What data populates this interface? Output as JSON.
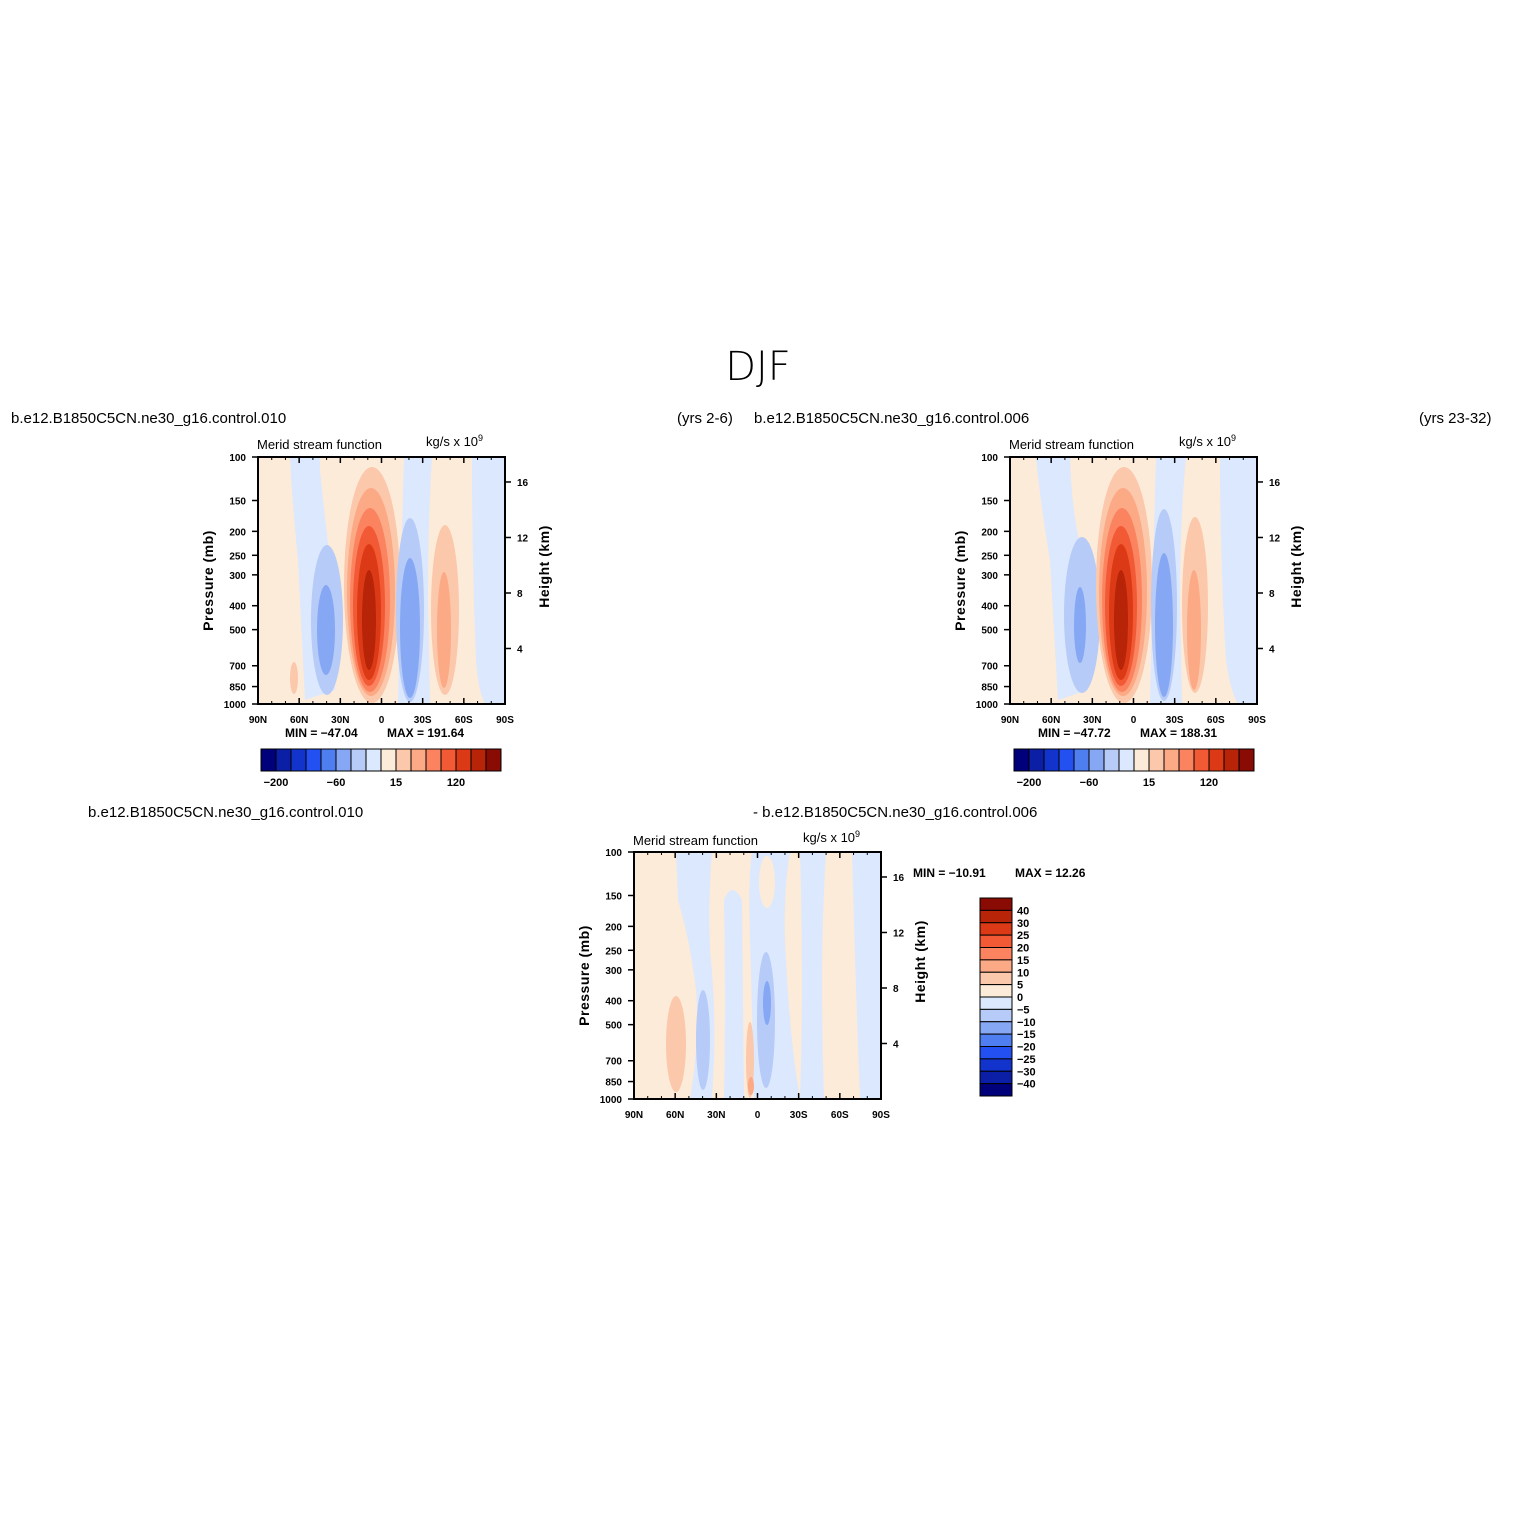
{
  "figure": {
    "title": "DJF",
    "panel_top_left": {
      "case_left": "b.e12.B1850C5CN.ne30_g16.control.010",
      "case_right": "(yrs 2-6)",
      "variable": "Merid stream function",
      "units": "kg/s x 10",
      "units_exp": "9",
      "min_label": "MIN = -47.04",
      "max_label": "MAX = 191.64"
    },
    "panel_top_right": {
      "case_left": "b.e12.B1850C5CN.ne30_g16.control.006",
      "case_right": "(yrs 23-32)",
      "variable": "Merid stream function",
      "units": "kg/s x 10",
      "units_exp": "9",
      "min_label": "MIN = -47.72",
      "max_label": "MAX = 188.31"
    },
    "panel_diff": {
      "case_left": "b.e12.B1850C5CN.ne30_g16.control.010",
      "case_right": "- b.e12.B1850C5CN.ne30_g16.control.006",
      "variable": "Merid stream function",
      "units": "kg/s x 10",
      "units_exp": "9",
      "min_label": "MIN = -10.91",
      "max_label": "MAX = 12.26"
    }
  },
  "colors": {
    "palette": [
      "#00007a",
      "#0a1fa6",
      "#1233cc",
      "#2350f0",
      "#4f7ef0",
      "#86a8f4",
      "#b6cbf7",
      "#dbe8fd",
      "#fdebd9",
      "#fcc8ab",
      "#fca985",
      "#fb8360",
      "#f25a35",
      "#dc3a16",
      "#b82408",
      "#8a0b04"
    ]
  },
  "chart_data": [
    {
      "type": "contour",
      "panel": "top-left",
      "title": "Merid stream function",
      "xlabel": "",
      "ylabel": "Pressure (mb)",
      "ylabel_right": "Height (km)",
      "x_ticks": [
        "90N",
        "60N",
        "30N",
        "0",
        "30S",
        "60S",
        "90S"
      ],
      "x_lat": [
        90,
        60,
        30,
        0,
        -30,
        -60,
        -90
      ],
      "y_ticks": [
        "100",
        "150",
        "200",
        "250",
        "300",
        "400",
        "500",
        "700",
        "850",
        "1000"
      ],
      "y_pressure": [
        100,
        150,
        200,
        250,
        300,
        400,
        500,
        700,
        850,
        1000
      ],
      "y_right_ticks": [
        "16",
        "12",
        "8",
        "4"
      ],
      "y_right_km": [
        16,
        12,
        8,
        4
      ],
      "colorbar_labels": [
        "-200",
        "-60",
        "15",
        "120"
      ],
      "min": -47.04,
      "max": 191.64,
      "cells": [
        {
          "lat": 70,
          "p": 780,
          "level": 9
        },
        {
          "lat": 42,
          "p": 510,
          "level": 5
        },
        {
          "lat": 10,
          "p": 480,
          "level": 14
        },
        {
          "lat": -22,
          "p": 520,
          "level": 4
        },
        {
          "lat": -45,
          "p": 580,
          "level": 10
        }
      ]
    },
    {
      "type": "contour",
      "panel": "top-right",
      "title": "Merid stream function",
      "xlabel": "",
      "ylabel": "Pressure (mb)",
      "ylabel_right": "Height (km)",
      "x_ticks": [
        "90N",
        "60N",
        "30N",
        "0",
        "30S",
        "60S",
        "90S"
      ],
      "x_lat": [
        90,
        60,
        30,
        0,
        -30,
        -60,
        -90
      ],
      "y_ticks": [
        "100",
        "150",
        "200",
        "250",
        "300",
        "400",
        "500",
        "700",
        "850",
        "1000"
      ],
      "y_pressure": [
        100,
        150,
        200,
        250,
        300,
        400,
        500,
        700,
        850,
        1000
      ],
      "y_right_ticks": [
        "16",
        "12",
        "8",
        "4"
      ],
      "y_right_km": [
        16,
        12,
        8,
        4
      ],
      "colorbar_labels": [
        "-200",
        "-60",
        "15",
        "120"
      ],
      "min": -47.72,
      "max": 188.31,
      "cells": [
        {
          "lat": 44,
          "p": 480,
          "level": 5
        },
        {
          "lat": 10,
          "p": 470,
          "level": 14
        },
        {
          "lat": -22,
          "p": 540,
          "level": 4
        },
        {
          "lat": -45,
          "p": 580,
          "level": 10
        }
      ]
    },
    {
      "type": "contour",
      "panel": "bottom-diff",
      "title": "Merid stream function",
      "xlabel": "",
      "ylabel": "Pressure (mb)",
      "ylabel_right": "Height (km)",
      "x_ticks": [
        "90N",
        "60N",
        "30N",
        "0",
        "30S",
        "60S",
        "90S"
      ],
      "x_lat": [
        90,
        60,
        30,
        0,
        -30,
        -60,
        -90
      ],
      "y_ticks": [
        "100",
        "150",
        "200",
        "250",
        "300",
        "400",
        "500",
        "700",
        "850",
        "1000"
      ],
      "y_pressure": [
        100,
        150,
        200,
        250,
        300,
        400,
        500,
        700,
        850,
        1000
      ],
      "y_right_ticks": [
        "16",
        "12",
        "8",
        "4"
      ],
      "y_right_km": [
        16,
        12,
        8,
        4
      ],
      "colorbar_levels": [
        40,
        30,
        25,
        20,
        15,
        10,
        5,
        0,
        -5,
        -10,
        -15,
        -20,
        -25,
        -30,
        -40
      ],
      "min": -10.91,
      "max": 12.26,
      "cells": [
        {
          "lat": 62,
          "p": 640,
          "level": 9
        },
        {
          "lat": 40,
          "p": 700,
          "level": 6
        },
        {
          "lat": 5,
          "p": 880,
          "level": 10
        },
        {
          "lat": -8,
          "p": 500,
          "level": 5
        }
      ]
    }
  ]
}
